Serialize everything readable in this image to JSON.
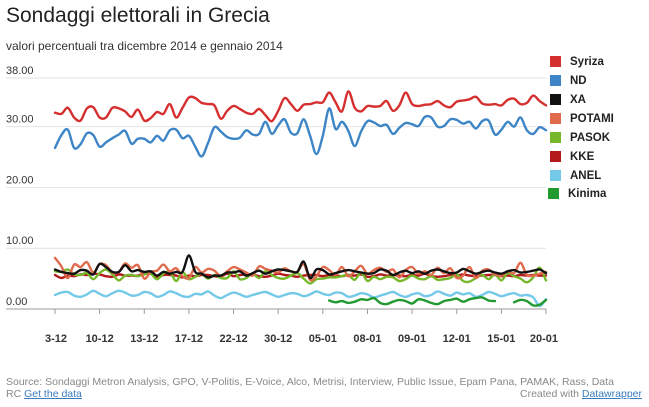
{
  "title": "Sondaggi elettorali in Grecia",
  "subtitle": "valori percentuali tra dicembre 2014 e gennaio 2014",
  "footer": {
    "source": "Source: Sondaggi Metron Analysis, GPO, V-Politis, E-Voice, Alco, Metrisi, Interview, Public Issue, Epam Pana, PAMAK, Rass, Data",
    "line2_prefix": "RC",
    "get_data": "Get the data",
    "created_with": "Created with",
    "datawrapper": "Datawrapper"
  },
  "chart_data": {
    "type": "line",
    "title": "Sondaggi elettorali in Grecia",
    "subtitle": "valori percentuali tra dicembre 2014 e gennaio 2014",
    "xlabel": "",
    "ylabel": "",
    "x_ticks": [
      "3-12",
      "10-12",
      "13-12",
      "17-12",
      "22-12",
      "30-12",
      "05-01",
      "08-01",
      "09-01",
      "12-01",
      "15-01",
      "20-01"
    ],
    "y_ticks": [
      "0.00",
      "10.00",
      "20.00",
      "30.00",
      "38.00"
    ],
    "y_tick_values": [
      0,
      10,
      20,
      30,
      38
    ],
    "ylim": [
      0,
      38
    ],
    "grid": true,
    "legend_position": "right",
    "series": [
      {
        "name": "Syriza",
        "color": "#d62f2f",
        "width": 2.4,
        "values": [
          32.3,
          32.1,
          33.1,
          31.5,
          31.0,
          33.0,
          33.2,
          31.5,
          31.5,
          33.1,
          33.0,
          32.5,
          31.6,
          32.8,
          31.0,
          31.4,
          32.4,
          32.1,
          33.7,
          31.5,
          33.1,
          34.8,
          34.7,
          33.9,
          33.7,
          33.5,
          31.3,
          32.6,
          33.4,
          32.9,
          32.3,
          32.1,
          32.9,
          31.9,
          30.9,
          32.6,
          34.7,
          33.7,
          32.6,
          33.6,
          33.7,
          34.0,
          34.0,
          35.6,
          34.0,
          32.5,
          35.8,
          33.1,
          32.5,
          33.4,
          33.3,
          33.4,
          34.2,
          32.6,
          33.5,
          35.6,
          33.7,
          33.4,
          33.6,
          33.7,
          34.2,
          33.5,
          33.2,
          34.1,
          34.3,
          34.5,
          34.9,
          33.8,
          33.6,
          33.7,
          33.5,
          34.4,
          34.6,
          33.7,
          33.9,
          35.1,
          34.2,
          33.5
        ]
      },
      {
        "name": "ND",
        "color": "#3d85c6",
        "width": 2.4,
        "values": [
          26.5,
          28.6,
          29.5,
          26.5,
          27.1,
          28.9,
          28.6,
          26.7,
          27.4,
          28.1,
          28.7,
          29.3,
          27.2,
          28.0,
          28.0,
          27.4,
          28.5,
          27.7,
          29.4,
          29.5,
          28.1,
          28.5,
          26.7,
          25.1,
          27.3,
          29.9,
          29.2,
          28.3,
          28.0,
          28.2,
          29.4,
          28.7,
          28.8,
          30.8,
          28.8,
          30.2,
          31.2,
          29.0,
          28.9,
          31.2,
          28.5,
          25.5,
          28.5,
          33.0,
          29.6,
          30.8,
          29.3,
          26.8,
          29.2,
          30.9,
          30.7,
          30.1,
          30.3,
          28.8,
          29.8,
          30.6,
          30.4,
          30.1,
          31.6,
          31.5,
          30.0,
          30.1,
          31.2,
          31.1,
          30.5,
          30.8,
          29.7,
          30.9,
          31.0,
          28.7,
          29.5,
          30.8,
          30.0,
          31.5,
          29.4,
          28.8,
          29.9,
          29.4
        ]
      },
      {
        "name": "XA",
        "color": "#111111",
        "width": 2.4,
        "values": [
          6.5,
          6.1,
          5.9,
          5.8,
          6.4,
          6.3,
          5.7,
          7.4,
          6.9,
          6.1,
          6.1,
          7.2,
          6.2,
          6.4,
          6.1,
          6.2,
          5.5,
          6.1,
          5.8,
          6.1,
          6.1,
          8.8,
          6.1,
          5.8,
          5.2,
          5.5,
          5.5,
          6.0,
          6.0,
          6.2,
          5.5,
          5.9,
          6.3,
          5.8,
          6.2,
          6.5,
          6.4,
          6.2,
          6.1,
          7.8,
          5.1,
          6.5,
          6.4,
          5.7,
          5.9,
          6.2,
          6.4,
          6.2,
          6.0,
          5.8,
          5.9,
          6.5,
          6.3,
          5.6,
          6.0,
          6.3,
          5.9,
          6.2,
          5.8,
          6.3,
          6.5,
          6.2,
          5.9,
          6.0,
          6.6,
          6.2,
          5.8,
          6.1,
          6.3,
          6.0,
          5.8,
          6.2,
          6.4,
          6.0,
          6.1,
          6.3,
          6.5,
          5.9
        ]
      },
      {
        "name": "POTAMI",
        "color": "#e06a4c",
        "width": 2.4,
        "values": [
          8.4,
          7.0,
          5.1,
          7.3,
          6.9,
          7.7,
          6.0,
          7.4,
          7.2,
          6.0,
          6.1,
          7.5,
          6.8,
          7.2,
          5.0,
          6.1,
          6.3,
          7.3,
          6.2,
          6.7,
          5.4,
          5.1,
          6.9,
          6.0,
          6.6,
          6.3,
          5.4,
          6.2,
          6.9,
          6.5,
          6.0,
          5.5,
          7.0,
          6.6,
          6.3,
          6.0,
          6.7,
          6.2,
          6.1,
          7.4,
          4.8,
          5.4,
          6.9,
          6.4,
          5.6,
          6.9,
          5.4,
          6.2,
          7.1,
          5.8,
          6.4,
          6.8,
          6.1,
          6.5,
          5.2,
          6.4,
          6.9,
          5.8,
          6.2,
          5.6,
          6.8,
          5.9,
          6.7,
          5.1,
          5.5,
          6.9,
          5.1,
          6.3,
          6.5,
          5.7,
          5.5,
          6.2,
          5.9,
          7.6,
          5.6,
          5.5,
          5.8,
          6.1
        ]
      },
      {
        "name": "PASOK",
        "color": "#76b82a",
        "width": 2.4,
        "values": [
          6.2,
          6.1,
          6.5,
          5.7,
          5.6,
          5.9,
          4.9,
          5.9,
          6.5,
          5.7,
          4.7,
          5.5,
          5.6,
          5.4,
          5.7,
          5.8,
          4.9,
          5.8,
          6.1,
          4.6,
          6.0,
          4.9,
          5.3,
          5.8,
          5.0,
          5.6,
          5.1,
          5.1,
          6.2,
          4.9,
          5.1,
          5.8,
          5.1,
          6.2,
          5.6,
          5.1,
          5.0,
          5.5,
          5.9,
          5.0,
          4.2,
          4.9,
          5.0,
          5.2,
          5.2,
          5.4,
          5.6,
          4.8,
          6.0,
          4.6,
          5.3,
          4.9,
          5.3,
          5.2,
          4.6,
          4.9,
          5.5,
          5.0,
          4.9,
          5.4,
          4.8,
          4.9,
          5.1,
          5.7,
          4.6,
          4.5,
          5.1,
          5.6,
          4.9,
          5.7,
          4.7,
          5.9,
          5.4,
          5.0,
          4.4,
          5.2,
          6.8,
          4.7
        ]
      },
      {
        "name": "KKE",
        "color": "#b31b1b",
        "width": 2.4,
        "values": [
          5.6,
          5.1,
          5.5,
          5.4,
          5.7,
          5.6,
          5.8,
          5.7,
          5.4,
          5.3,
          5.7,
          5.5,
          5.5,
          5.5,
          5.8,
          5.8,
          5.3,
          5.6,
          5.6,
          5.5,
          5.2,
          5.5,
          5.4,
          5.6,
          5.6,
          5.4,
          5.3,
          5.8,
          5.4,
          5.6,
          5.7,
          5.7,
          5.4,
          5.3,
          5.5,
          5.8,
          5.6,
          5.5,
          5.3,
          5.5,
          5.6,
          5.6,
          5.4,
          5.6,
          5.5,
          5.4,
          5.6,
          5.5,
          5.7,
          5.3,
          5.4,
          5.7,
          5.5,
          5.6,
          5.5,
          5.4,
          5.6,
          5.5,
          5.8,
          5.4,
          5.3,
          5.4,
          5.6,
          5.5,
          5.7,
          5.5,
          5.4,
          5.5,
          5.6,
          5.6,
          5.4,
          5.5,
          5.4,
          5.6,
          5.5,
          5.6,
          5.5,
          5.5
        ]
      },
      {
        "name": "ANEL",
        "color": "#74c8e8",
        "width": 2.4,
        "values": [
          2.3,
          2.7,
          2.8,
          2.2,
          2.0,
          2.4,
          3.0,
          2.5,
          2.1,
          2.6,
          3.0,
          2.7,
          2.2,
          2.3,
          2.8,
          2.6,
          2.0,
          2.3,
          2.9,
          2.6,
          2.1,
          2.0,
          2.5,
          2.4,
          2.9,
          2.2,
          1.8,
          2.3,
          2.7,
          2.4,
          2.0,
          2.3,
          2.6,
          2.8,
          2.4,
          2.0,
          2.3,
          2.6,
          2.5,
          2.1,
          2.4,
          2.9,
          2.5,
          2.3,
          2.7,
          2.6,
          2.0,
          2.2,
          2.6,
          2.4,
          1.9,
          2.2,
          2.5,
          2.8,
          2.3,
          2.0,
          2.4,
          2.6,
          2.1,
          2.3,
          2.9,
          2.5,
          2.2,
          2.7,
          2.4,
          2.6,
          2.0,
          2.3,
          2.8,
          2.5,
          2.1,
          2.4,
          2.6,
          2.2,
          2.3,
          1.9,
          0.5,
          1.6
        ]
      },
      {
        "name": "Kinima",
        "color": "#229a30",
        "width": 2.4,
        "values": [
          null,
          null,
          null,
          null,
          null,
          null,
          null,
          null,
          null,
          null,
          null,
          null,
          null,
          null,
          null,
          null,
          null,
          null,
          null,
          null,
          null,
          null,
          null,
          null,
          null,
          null,
          null,
          null,
          null,
          null,
          null,
          null,
          null,
          null,
          null,
          null,
          null,
          null,
          null,
          null,
          null,
          null,
          null,
          1.4,
          1.1,
          1.3,
          1.0,
          1.2,
          1.6,
          1.5,
          1.8,
          1.0,
          0.8,
          1.2,
          1.5,
          1.3,
          0.9,
          1.6,
          1.4,
          1.0,
          0.8,
          1.3,
          1.5,
          1.7,
          1.2,
          1.6,
          1.8,
          1.9,
          1.4,
          1.3,
          null,
          null,
          1.1,
          1.5,
          1.3,
          0.6,
          0.7,
          1.5
        ]
      }
    ]
  }
}
